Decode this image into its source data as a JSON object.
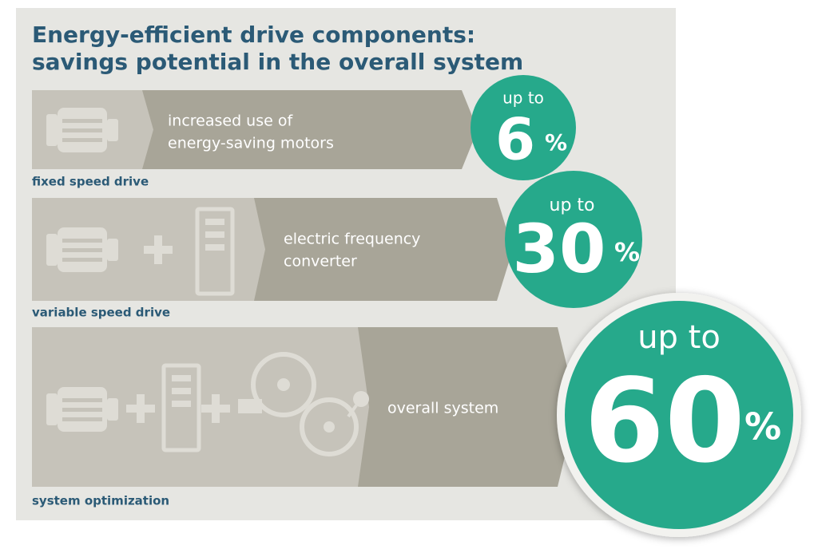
{
  "title": [
    "Energy-efficient drive components:",
    "savings potential in the overall system"
  ],
  "rows": [
    {
      "label": "fixed speed drive",
      "description": [
        "increased use of",
        "energy-saving motors"
      ],
      "prefix": "up to",
      "value": 6,
      "unit": "%"
    },
    {
      "label": "variable speed drive",
      "description": [
        "electric frequency",
        "converter"
      ],
      "prefix": "up to",
      "value": 30,
      "unit": "%"
    },
    {
      "label": "system optimization",
      "description": [
        "overall system"
      ],
      "prefix": "up to",
      "value": 60,
      "unit": "%"
    }
  ]
}
